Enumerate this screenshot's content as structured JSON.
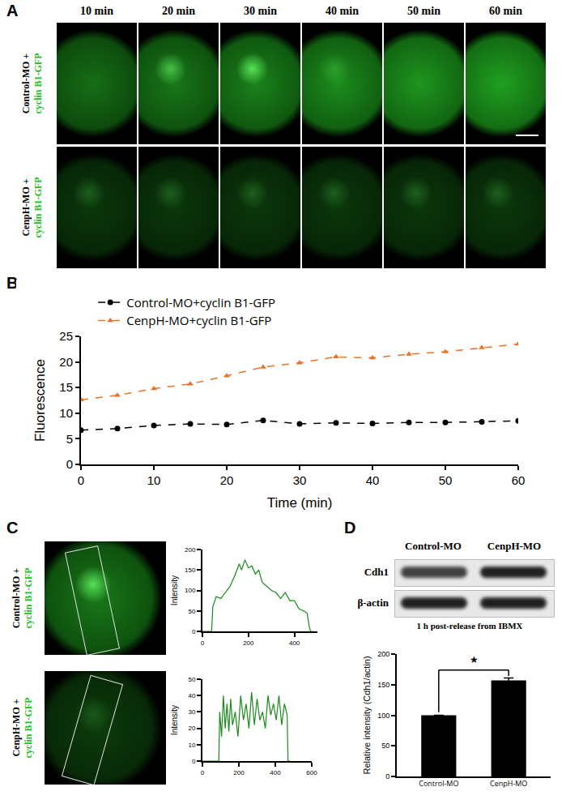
{
  "panels": {
    "A": {
      "label": "A",
      "time_labels": [
        "10 min",
        "20 min",
        "30 min",
        "40  min",
        "50  min",
        "60  min"
      ],
      "rows": [
        {
          "prefix": "Control-MO +",
          "reporter": "cyclin B1-GFP"
        },
        {
          "prefix": "CenpH-MO +",
          "reporter": "cyclin B1-GFP"
        }
      ]
    },
    "B": {
      "label": "B"
    },
    "C": {
      "label": "C",
      "rows": [
        {
          "prefix": "Control-MO +",
          "reporter": "cyclin B1-GFP"
        },
        {
          "prefix": "CenpH-MO +",
          "reporter": "cyclin B1-GFP"
        }
      ]
    },
    "D": {
      "label": "D",
      "blot": {
        "lanes": [
          "Control-MO",
          "CenpH-MO"
        ],
        "bands": [
          "Cdh1",
          "β-actin"
        ],
        "caption": "1 h post-release from IBMX"
      }
    }
  },
  "chart_data": [
    {
      "type": "line",
      "x_label": "Time (min)",
      "y_label": "Fluorescence",
      "x": [
        0,
        5,
        10,
        15,
        20,
        25,
        30,
        35,
        40,
        45,
        50,
        55,
        60
      ],
      "series": [
        {
          "name": "Control-MO+cyclin B1-GFP",
          "color": "#000000",
          "marker": "circle",
          "line_style": "dash",
          "values": [
            6.7,
            7.0,
            7.6,
            7.9,
            7.8,
            8.6,
            7.9,
            8.1,
            8.0,
            8.2,
            8.2,
            8.3,
            8.5
          ]
        },
        {
          "name": "CenpH-MO+cyclin B1-GFP",
          "color": "#e8742a",
          "marker": "triangle",
          "line_style": "dash",
          "values": [
            12.6,
            13.5,
            14.8,
            15.7,
            17.3,
            19.0,
            19.8,
            21.0,
            20.8,
            21.5,
            22.0,
            22.8,
            23.5
          ]
        }
      ],
      "xlim": [
        0,
        60
      ],
      "xticks": [
        0,
        10,
        20,
        30,
        40,
        50,
        60
      ],
      "ylim": [
        0,
        25
      ],
      "yticks": [
        0,
        5,
        10,
        15,
        20,
        25
      ],
      "legend": "top",
      "grid": false
    },
    {
      "type": "line",
      "y_label": "Intensity",
      "color": "#1a8a1a",
      "x": [
        0,
        40,
        45,
        60,
        80,
        100,
        120,
        140,
        160,
        170,
        185,
        200,
        215,
        230,
        245,
        260,
        280,
        300,
        320,
        340,
        360,
        380,
        400,
        420,
        440,
        455,
        465,
        470,
        480
      ],
      "values": [
        0,
        0,
        60,
        85,
        80,
        95,
        110,
        135,
        165,
        150,
        175,
        155,
        160,
        140,
        150,
        120,
        110,
        100,
        95,
        80,
        95,
        75,
        75,
        55,
        50,
        45,
        10,
        0,
        0
      ],
      "xlim": [
        0,
        500
      ],
      "xticks": [
        0,
        200,
        400
      ],
      "ylim": [
        0,
        200
      ],
      "yticks": [
        0,
        50,
        100,
        150,
        200
      ],
      "grid": false
    },
    {
      "type": "line",
      "y_label": "Intensity",
      "color": "#1a8a1a",
      "x": [
        0,
        90,
        95,
        105,
        115,
        125,
        135,
        145,
        155,
        165,
        180,
        195,
        210,
        225,
        240,
        255,
        270,
        285,
        300,
        315,
        330,
        345,
        360,
        375,
        390,
        405,
        420,
        435,
        450,
        465,
        470,
        480
      ],
      "values": [
        0,
        0,
        30,
        15,
        40,
        20,
        35,
        18,
        38,
        22,
        30,
        15,
        40,
        25,
        35,
        20,
        42,
        22,
        38,
        25,
        30,
        20,
        40,
        28,
        35,
        25,
        40,
        22,
        35,
        28,
        0,
        0
      ],
      "xlim": [
        0,
        600
      ],
      "xticks": [
        0,
        200,
        400,
        600
      ],
      "ylim": [
        0,
        50
      ],
      "yticks": [
        0,
        10,
        20,
        30,
        40,
        50
      ],
      "grid": false
    },
    {
      "type": "bar",
      "y_label": "Relative intensity (Cdh1/actin)",
      "categories": [
        "Control-MO",
        "CenpH-MO"
      ],
      "values": [
        100,
        157
      ],
      "error": [
        0,
        4
      ],
      "color": "#000000",
      "ylim": [
        0,
        200
      ],
      "yticks": [
        0,
        50,
        100,
        150,
        200
      ],
      "annotations": [
        "★"
      ],
      "grid": false
    }
  ]
}
